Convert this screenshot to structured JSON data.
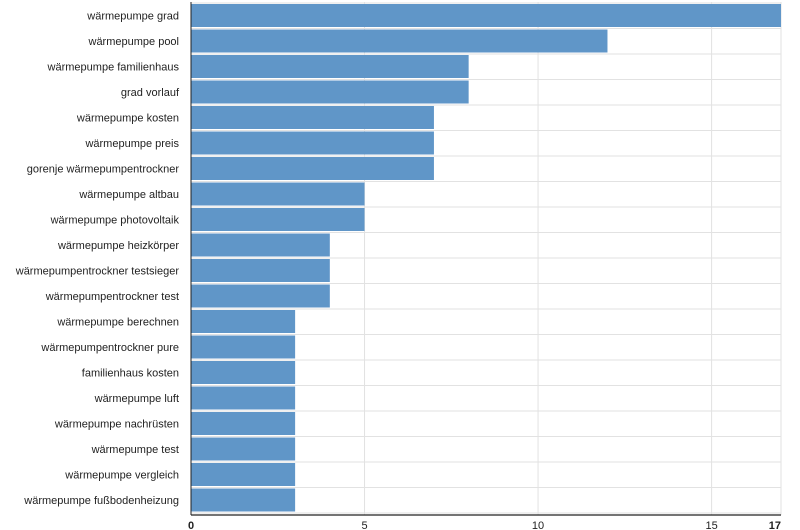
{
  "chart_data": {
    "type": "bar",
    "orientation": "horizontal",
    "categories": [
      "wärmepumpe grad",
      "wärmepumpe pool",
      "wärmepumpe familienhaus",
      "grad vorlauf",
      "wärmepumpe kosten",
      "wärmepumpe preis",
      "gorenje wärmepumpentrockner",
      "wärmepumpe altbau",
      "wärmepumpe photovoltaik",
      "wärmepumpe heizkörper",
      "wärmepumpentrockner testsieger",
      "wärmepumpentrockner test",
      "wärmepumpe berechnen",
      "wärmepumpentrockner pure",
      "familienhaus kosten",
      "wärmepumpe luft",
      "wärmepumpe nachrüsten",
      "wärmepumpe test",
      "wärmepumpe vergleich",
      "wärmepumpe fußbodenheizung"
    ],
    "values": [
      17,
      12,
      8,
      8,
      7,
      7,
      7,
      5,
      5,
      4,
      4,
      4,
      3,
      3,
      3,
      3,
      3,
      3,
      3,
      3
    ],
    "xlim": [
      0,
      17
    ],
    "x_ticks": [
      0,
      5,
      10,
      15,
      17
    ],
    "grid": true,
    "bar_color": "#6096c8",
    "grid_color": "#e2e2e2",
    "axis_color": "#222222",
    "label_color": "#222222"
  }
}
